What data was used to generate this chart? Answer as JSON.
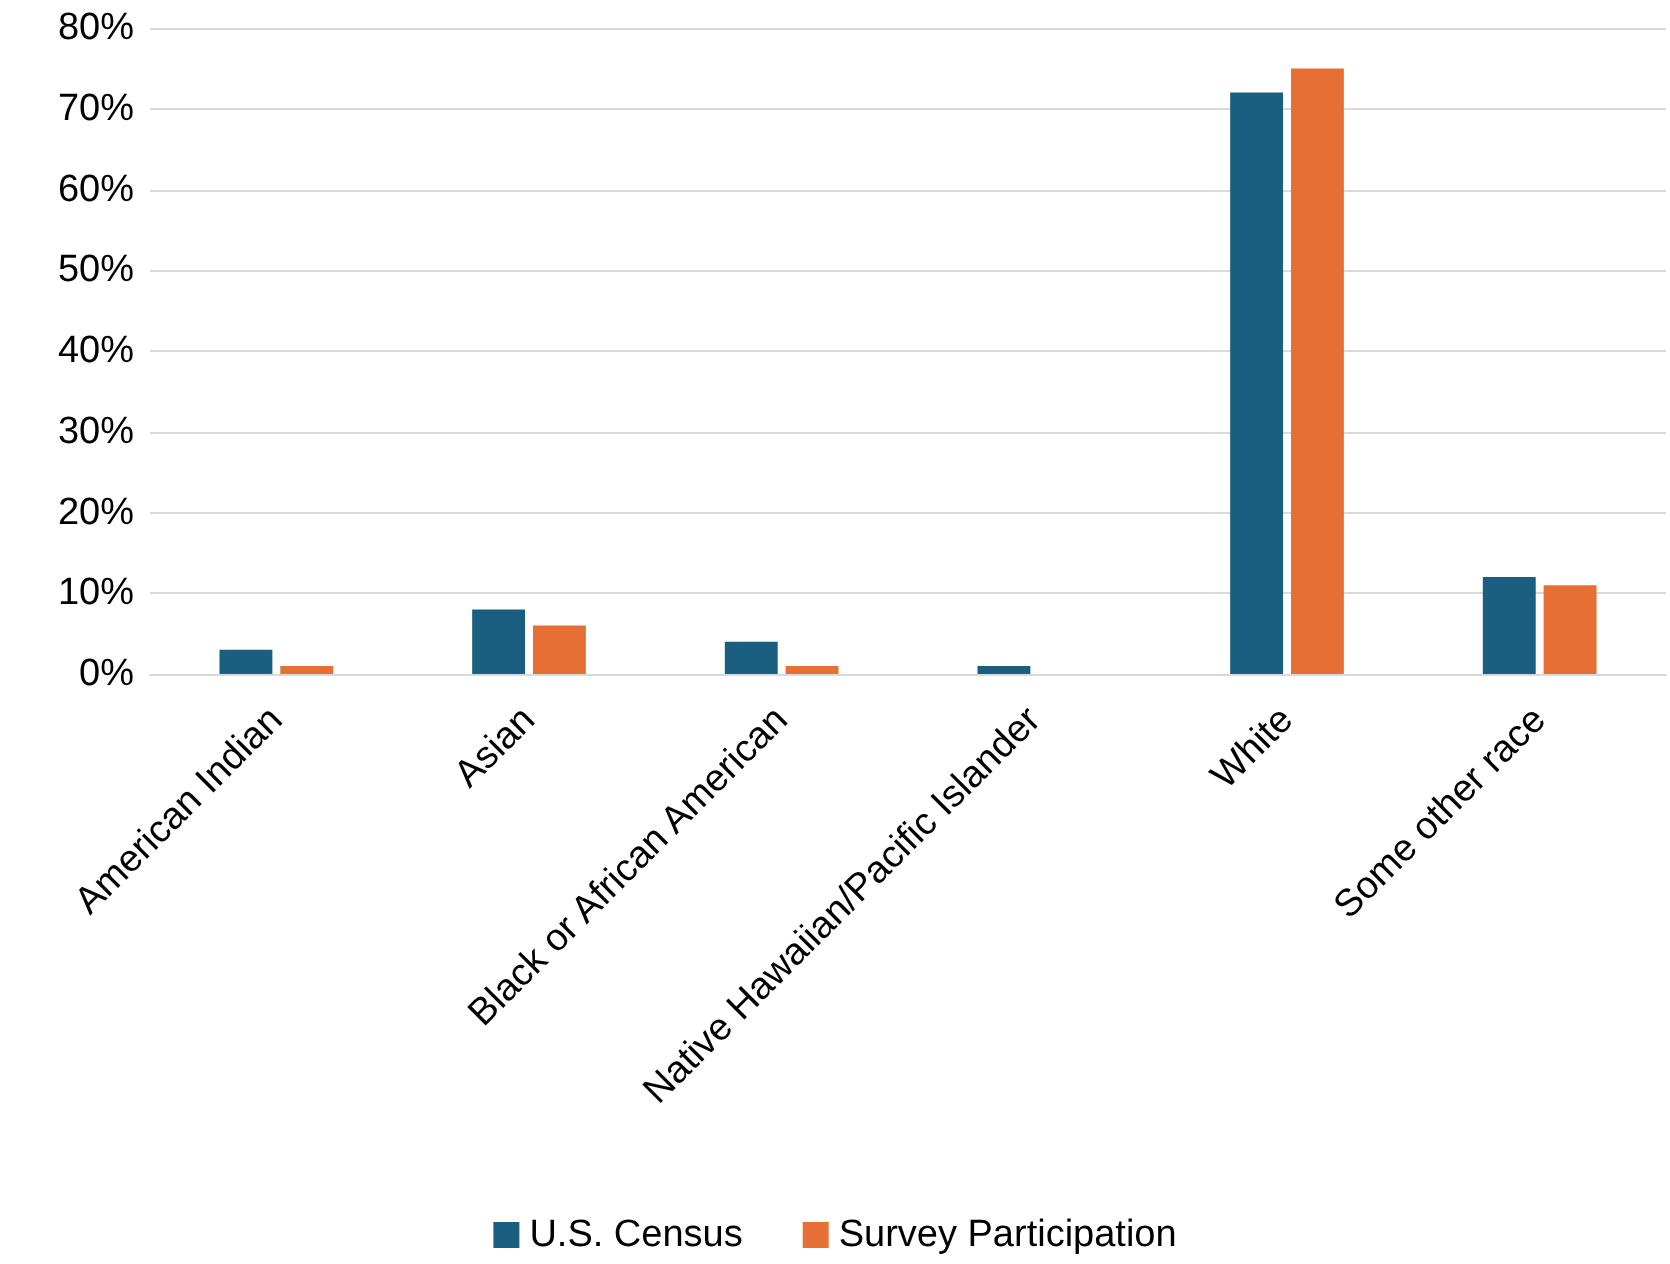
{
  "chart_data": {
    "type": "bar",
    "categories": [
      "American Indian",
      "Asian",
      "Black or African American",
      "Native Hawaiian/Pacific Islander",
      "White",
      "Some other race"
    ],
    "series": [
      {
        "name": "U.S. Census",
        "color": "#1a5f80",
        "values": [
          3,
          8,
          4,
          1,
          72,
          12
        ]
      },
      {
        "name": "Survey Participation",
        "color": "#e56f34",
        "values": [
          1,
          6,
          1,
          0,
          75,
          11
        ]
      }
    ],
    "ylim": [
      0,
      80
    ],
    "yticks": [
      {
        "value": 0,
        "label": "0%"
      },
      {
        "value": 10,
        "label": "10%"
      },
      {
        "value": 20,
        "label": "20%"
      },
      {
        "value": 30,
        "label": "30%"
      },
      {
        "value": 40,
        "label": "40%"
      },
      {
        "value": 50,
        "label": "50%"
      },
      {
        "value": 60,
        "label": "60%"
      },
      {
        "value": 70,
        "label": "70%"
      },
      {
        "value": 80,
        "label": "80%"
      }
    ],
    "grid": "y",
    "legend": "bottom"
  }
}
